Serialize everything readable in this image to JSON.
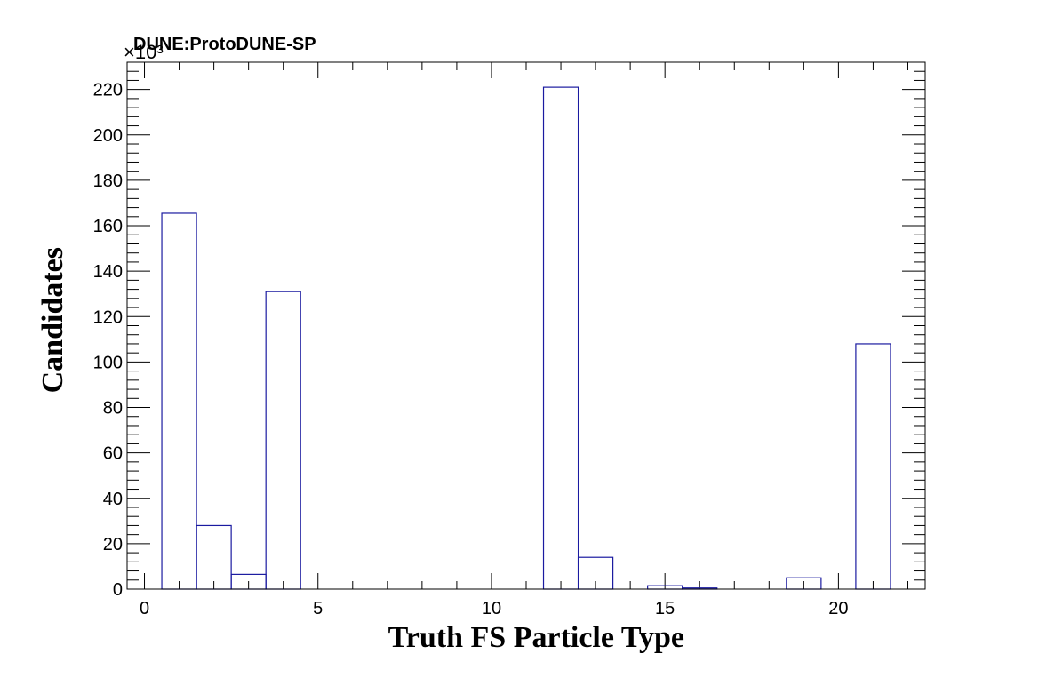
{
  "chart_data": {
    "type": "bar",
    "title": "DUNE:ProtoDUNE-SP",
    "xlabel": "Truth FS Particle Type",
    "ylabel": "Candidates",
    "y_multiplier": "×10³",
    "xlim": [
      -0.5,
      22.5
    ],
    "ylim": [
      0,
      232
    ],
    "x_ticks": [
      0,
      5,
      10,
      15,
      20
    ],
    "y_ticks": [
      0,
      20,
      40,
      60,
      80,
      100,
      120,
      140,
      160,
      180,
      200,
      220
    ],
    "bin_width": 1,
    "bins": [
      {
        "x": 1,
        "value": 165.5
      },
      {
        "x": 2,
        "value": 28
      },
      {
        "x": 3,
        "value": 6.5
      },
      {
        "x": 4,
        "value": 131
      },
      {
        "x": 12,
        "value": 221
      },
      {
        "x": 13,
        "value": 14
      },
      {
        "x": 15,
        "value": 1.5
      },
      {
        "x": 16,
        "value": 0.5
      },
      {
        "x": 19,
        "value": 5
      },
      {
        "x": 21,
        "value": 108
      }
    ],
    "line_color": "#1a1aa0",
    "grid": false
  }
}
